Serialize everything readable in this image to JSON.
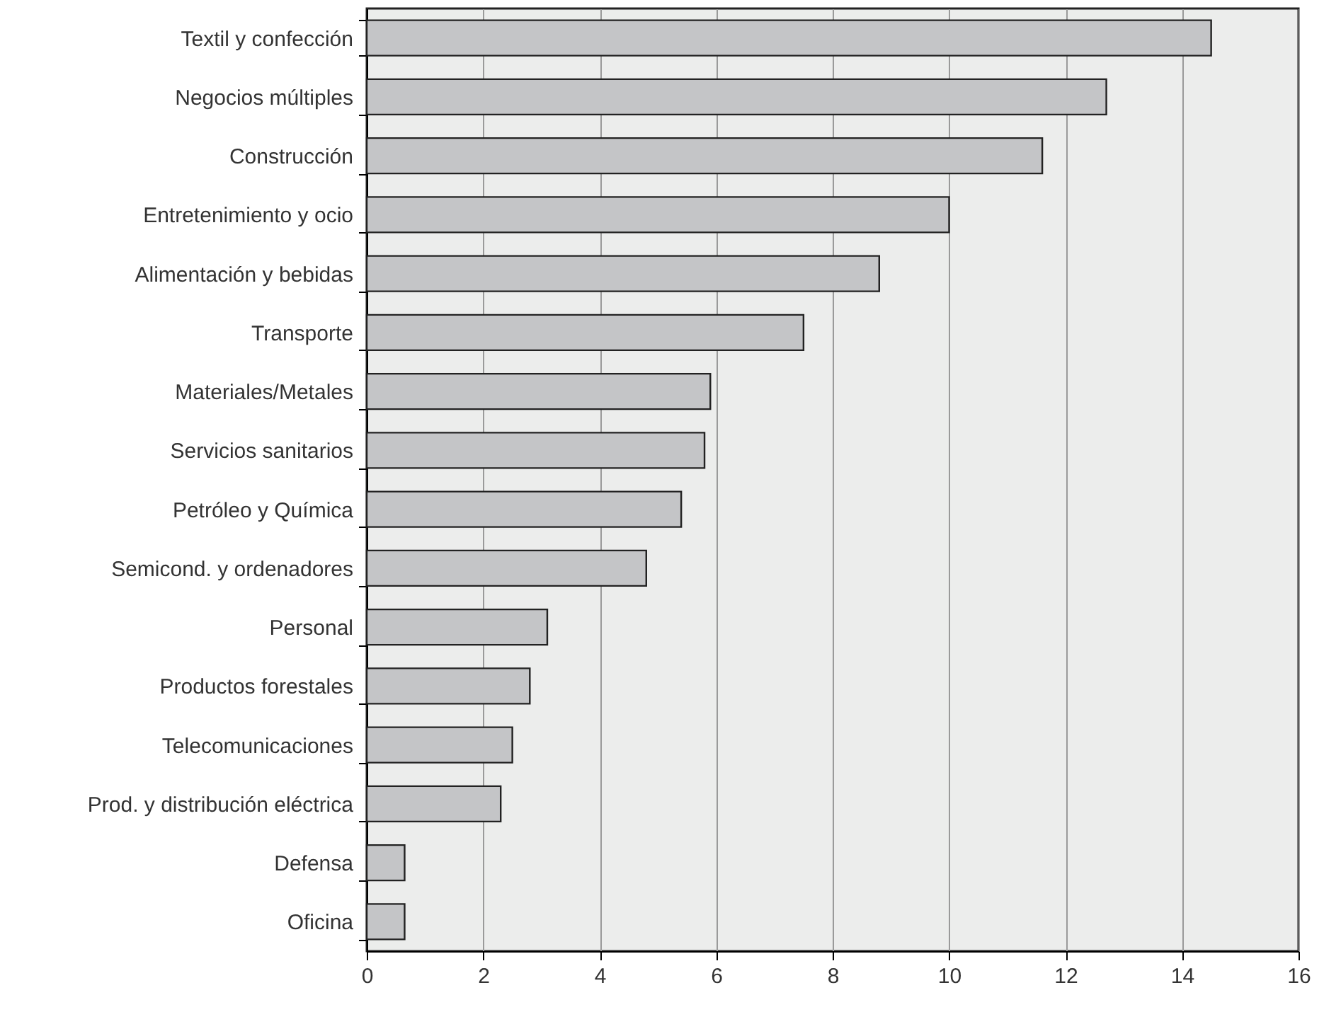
{
  "chart_data": {
    "type": "bar",
    "orientation": "horizontal",
    "categories": [
      "Textil y confección",
      "Negocios múltiples",
      "Construcción",
      "Entretenimiento y ocio",
      "Alimentación y bebidas",
      "Transporte",
      "Materiales/Metales",
      "Servicios sanitarios",
      "Petróleo y Química",
      "Semicond. y ordenadores",
      "Personal",
      "Productos forestales",
      "Telecomunicaciones",
      "Prod. y distribución eléctrica",
      "Defensa",
      "Oficina"
    ],
    "values": [
      14.5,
      12.7,
      11.6,
      10.0,
      8.8,
      7.5,
      5.9,
      5.8,
      5.4,
      4.8,
      3.1,
      2.8,
      2.5,
      2.3,
      0.65,
      0.65
    ],
    "color": "#c4c5c7",
    "xlim": [
      0,
      16
    ],
    "xticks": [
      0,
      2,
      4,
      6,
      8,
      10,
      12,
      14,
      16
    ],
    "grid": "x"
  }
}
